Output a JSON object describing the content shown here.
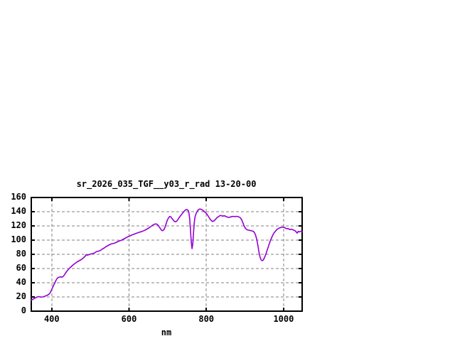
{
  "chart_data": {
    "type": "line",
    "title": "sr_2026_035_TGF__y03_r_rad 13-20-00",
    "xlabel": "nm",
    "ylabel": "",
    "xlim": [
      347,
      1048
    ],
    "ylim": [
      0,
      160
    ],
    "x_ticks": [
      400,
      600,
      800,
      1000
    ],
    "y_ticks": [
      0,
      20,
      40,
      60,
      80,
      100,
      120,
      140,
      160
    ],
    "grid": true,
    "legend_position": "none",
    "colors": {
      "line": "#9400d3",
      "grid": "#808080",
      "axis": "#000000",
      "text": "#000000",
      "background": "#ffffff"
    },
    "series": [
      {
        "name": "sr_2026_035_TGF__y03_r_rad",
        "points": [
          [
            347,
            15.5
          ],
          [
            352,
            17
          ],
          [
            357,
            18.5
          ],
          [
            362,
            20
          ],
          [
            367,
            20.5
          ],
          [
            372,
            19.8
          ],
          [
            377,
            20
          ],
          [
            382,
            21
          ],
          [
            387,
            22
          ],
          [
            392,
            23.5
          ],
          [
            396,
            26
          ],
          [
            399,
            29.5
          ],
          [
            402,
            33
          ],
          [
            405,
            36.5
          ],
          [
            408,
            40
          ],
          [
            411,
            43.5
          ],
          [
            414,
            46
          ],
          [
            417,
            47.5
          ],
          [
            420,
            48
          ],
          [
            423,
            48.3
          ],
          [
            426,
            47.8
          ],
          [
            429,
            48.6
          ],
          [
            432,
            50.5
          ],
          [
            435,
            53
          ],
          [
            438,
            55.5
          ],
          [
            441,
            57.5
          ],
          [
            446,
            60.5
          ],
          [
            451,
            63
          ],
          [
            456,
            65.5
          ],
          [
            461,
            67.5
          ],
          [
            466,
            69.5
          ],
          [
            471,
            71
          ],
          [
            476,
            72.5
          ],
          [
            481,
            74.5
          ],
          [
            486,
            77
          ],
          [
            489,
            79.5
          ],
          [
            492,
            78.8
          ],
          [
            496,
            79.5
          ],
          [
            501,
            80.5
          ],
          [
            506,
            81
          ],
          [
            511,
            82
          ],
          [
            516,
            84
          ],
          [
            521,
            84.5
          ],
          [
            526,
            85.5
          ],
          [
            531,
            87.5
          ],
          [
            536,
            89
          ],
          [
            541,
            91
          ],
          [
            546,
            92.5
          ],
          [
            551,
            94
          ],
          [
            556,
            95
          ],
          [
            561,
            95.5
          ],
          [
            566,
            96.5
          ],
          [
            571,
            98
          ],
          [
            576,
            99
          ],
          [
            581,
            100
          ],
          [
            586,
            101.5
          ],
          [
            591,
            103
          ],
          [
            596,
            104.5
          ],
          [
            601,
            105.5
          ],
          [
            606,
            107
          ],
          [
            611,
            108
          ],
          [
            616,
            109
          ],
          [
            621,
            110
          ],
          [
            626,
            111
          ],
          [
            631,
            111.8
          ],
          [
            636,
            112.8
          ],
          [
            641,
            114
          ],
          [
            646,
            115.5
          ],
          [
            651,
            117
          ],
          [
            656,
            119
          ],
          [
            661,
            121
          ],
          [
            664,
            122
          ],
          [
            668,
            122.8
          ],
          [
            672,
            122.5
          ],
          [
            676,
            120.5
          ],
          [
            680,
            117
          ],
          [
            684,
            114
          ],
          [
            687,
            113.2
          ],
          [
            690,
            114.5
          ],
          [
            693,
            118
          ],
          [
            696,
            123
          ],
          [
            699,
            128
          ],
          [
            702,
            131
          ],
          [
            705,
            133.2
          ],
          [
            708,
            133
          ],
          [
            711,
            130.5
          ],
          [
            714,
            128.5
          ],
          [
            717,
            126.5
          ],
          [
            720,
            125.8
          ],
          [
            723,
            126.5
          ],
          [
            726,
            128.5
          ],
          [
            729,
            131
          ],
          [
            732,
            133.5
          ],
          [
            735,
            135.5
          ],
          [
            738,
            137.5
          ],
          [
            741,
            139.5
          ],
          [
            744,
            141.5
          ],
          [
            747,
            142.8
          ],
          [
            750,
            143
          ],
          [
            753,
            141.8
          ],
          [
            755,
            138
          ],
          [
            757,
            130
          ],
          [
            759,
            115
          ],
          [
            761,
            98
          ],
          [
            763,
            88
          ],
          [
            765,
            95
          ],
          [
            767,
            112
          ],
          [
            769,
            126
          ],
          [
            771,
            133
          ],
          [
            774,
            138
          ],
          [
            777,
            141
          ],
          [
            780,
            143
          ],
          [
            783,
            143.8
          ],
          [
            786,
            143.5
          ],
          [
            789,
            142.8
          ],
          [
            792,
            141.5
          ],
          [
            795,
            140
          ],
          [
            798,
            138.8
          ],
          [
            801,
            137
          ],
          [
            804,
            134.5
          ],
          [
            807,
            132
          ],
          [
            810,
            129.5
          ],
          [
            813,
            127.5
          ],
          [
            816,
            126.3
          ],
          [
            819,
            126.8
          ],
          [
            822,
            128.2
          ],
          [
            825,
            130
          ],
          [
            828,
            131.8
          ],
          [
            831,
            133
          ],
          [
            834,
            134
          ],
          [
            837,
            134.8
          ],
          [
            840,
            134.2
          ],
          [
            843,
            133.8
          ],
          [
            846,
            134.3
          ],
          [
            849,
            133.8
          ],
          [
            852,
            133
          ],
          [
            855,
            132.3
          ],
          [
            858,
            132
          ],
          [
            861,
            132.3
          ],
          [
            864,
            132.8
          ],
          [
            867,
            133.2
          ],
          [
            870,
            133.5
          ],
          [
            873,
            133
          ],
          [
            876,
            133.3
          ],
          [
            879,
            133.5
          ],
          [
            882,
            133
          ],
          [
            885,
            132.5
          ],
          [
            888,
            131.5
          ],
          [
            891,
            129
          ],
          [
            894,
            125.5
          ],
          [
            897,
            121
          ],
          [
            900,
            117.5
          ],
          [
            903,
            115.5
          ],
          [
            906,
            114.5
          ],
          [
            909,
            114
          ],
          [
            912,
            113.8
          ],
          [
            915,
            113.3
          ],
          [
            918,
            113
          ],
          [
            921,
            112.5
          ],
          [
            924,
            111
          ],
          [
            927,
            108
          ],
          [
            930,
            102
          ],
          [
            933,
            94
          ],
          [
            936,
            84
          ],
          [
            939,
            76
          ],
          [
            942,
            72
          ],
          [
            945,
            71
          ],
          [
            948,
            72.5
          ],
          [
            951,
            76
          ],
          [
            954,
            80
          ],
          [
            957,
            85
          ],
          [
            960,
            90
          ],
          [
            963,
            95
          ],
          [
            966,
            99.5
          ],
          [
            969,
            103.5
          ],
          [
            972,
            107
          ],
          [
            975,
            110
          ],
          [
            978,
            112
          ],
          [
            981,
            114
          ],
          [
            984,
            115.5
          ],
          [
            987,
            116.5
          ],
          [
            990,
            117.3
          ],
          [
            993,
            117.8
          ],
          [
            996,
            118
          ],
          [
            999,
            118.3
          ],
          [
            1002,
            117.8
          ],
          [
            1005,
            116.8
          ],
          [
            1008,
            116
          ],
          [
            1011,
            116.3
          ],
          [
            1014,
            115.5
          ],
          [
            1017,
            114.8
          ],
          [
            1020,
            115.5
          ],
          [
            1023,
            114.8
          ],
          [
            1026,
            114
          ],
          [
            1029,
            113.5
          ],
          [
            1032,
            112
          ],
          [
            1035,
            109.8
          ],
          [
            1038,
            112.3
          ],
          [
            1041,
            111.5
          ],
          [
            1044,
            112.5
          ],
          [
            1048,
            112
          ]
        ]
      }
    ]
  }
}
